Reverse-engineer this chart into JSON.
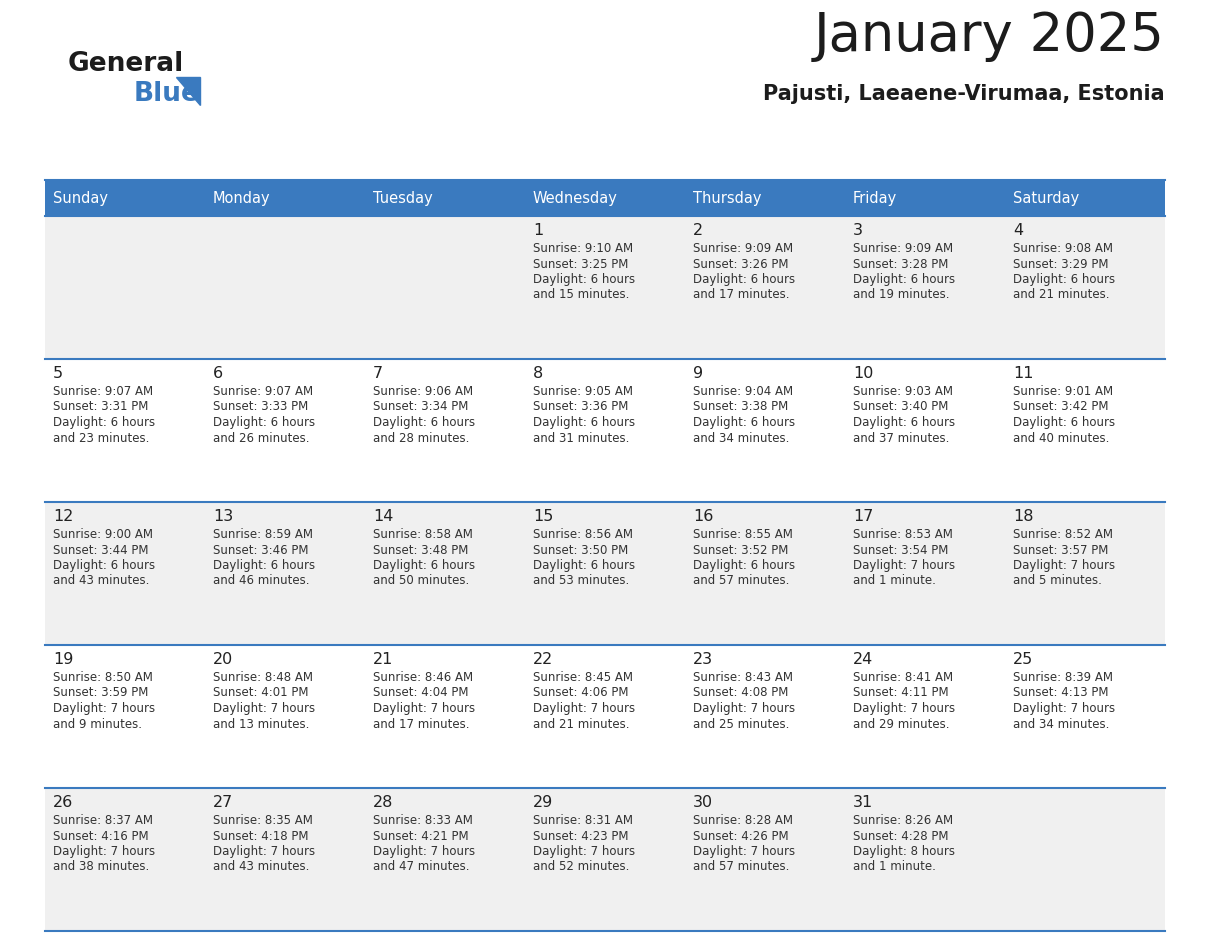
{
  "title": "January 2025",
  "subtitle": "Pajusti, Laeaene-Virumaa, Estonia",
  "days_of_week": [
    "Sunday",
    "Monday",
    "Tuesday",
    "Wednesday",
    "Thursday",
    "Friday",
    "Saturday"
  ],
  "header_bg": "#3a7abf",
  "header_text": "#ffffff",
  "row_bg1": "#f0f0f0",
  "row_bg2": "#ffffff",
  "divider_color": "#3a7abf",
  "cell_text_color": "#333333",
  "day_number_color": "#222222",
  "calendar_data": [
    [
      {
        "day": "",
        "sunrise": "",
        "sunset": "",
        "hours": "",
        "minutes": ""
      },
      {
        "day": "",
        "sunrise": "",
        "sunset": "",
        "hours": "",
        "minutes": ""
      },
      {
        "day": "",
        "sunrise": "",
        "sunset": "",
        "hours": "",
        "minutes": ""
      },
      {
        "day": "1",
        "sunrise": "9:10 AM",
        "sunset": "3:25 PM",
        "hours": "6",
        "minutes": "15"
      },
      {
        "day": "2",
        "sunrise": "9:09 AM",
        "sunset": "3:26 PM",
        "hours": "6",
        "minutes": "17"
      },
      {
        "day": "3",
        "sunrise": "9:09 AM",
        "sunset": "3:28 PM",
        "hours": "6",
        "minutes": "19"
      },
      {
        "day": "4",
        "sunrise": "9:08 AM",
        "sunset": "3:29 PM",
        "hours": "6",
        "minutes": "21"
      }
    ],
    [
      {
        "day": "5",
        "sunrise": "9:07 AM",
        "sunset": "3:31 PM",
        "hours": "6",
        "minutes": "23"
      },
      {
        "day": "6",
        "sunrise": "9:07 AM",
        "sunset": "3:33 PM",
        "hours": "6",
        "minutes": "26"
      },
      {
        "day": "7",
        "sunrise": "9:06 AM",
        "sunset": "3:34 PM",
        "hours": "6",
        "minutes": "28"
      },
      {
        "day": "8",
        "sunrise": "9:05 AM",
        "sunset": "3:36 PM",
        "hours": "6",
        "minutes": "31"
      },
      {
        "day": "9",
        "sunrise": "9:04 AM",
        "sunset": "3:38 PM",
        "hours": "6",
        "minutes": "34"
      },
      {
        "day": "10",
        "sunrise": "9:03 AM",
        "sunset": "3:40 PM",
        "hours": "6",
        "minutes": "37"
      },
      {
        "day": "11",
        "sunrise": "9:01 AM",
        "sunset": "3:42 PM",
        "hours": "6",
        "minutes": "40"
      }
    ],
    [
      {
        "day": "12",
        "sunrise": "9:00 AM",
        "sunset": "3:44 PM",
        "hours": "6",
        "minutes": "43"
      },
      {
        "day": "13",
        "sunrise": "8:59 AM",
        "sunset": "3:46 PM",
        "hours": "6",
        "minutes": "46"
      },
      {
        "day": "14",
        "sunrise": "8:58 AM",
        "sunset": "3:48 PM",
        "hours": "6",
        "minutes": "50"
      },
      {
        "day": "15",
        "sunrise": "8:56 AM",
        "sunset": "3:50 PM",
        "hours": "6",
        "minutes": "53"
      },
      {
        "day": "16",
        "sunrise": "8:55 AM",
        "sunset": "3:52 PM",
        "hours": "6",
        "minutes": "57"
      },
      {
        "day": "17",
        "sunrise": "8:53 AM",
        "sunset": "3:54 PM",
        "hours": "7",
        "minutes": "1"
      },
      {
        "day": "18",
        "sunrise": "8:52 AM",
        "sunset": "3:57 PM",
        "hours": "7",
        "minutes": "5"
      }
    ],
    [
      {
        "day": "19",
        "sunrise": "8:50 AM",
        "sunset": "3:59 PM",
        "hours": "7",
        "minutes": "9"
      },
      {
        "day": "20",
        "sunrise": "8:48 AM",
        "sunset": "4:01 PM",
        "hours": "7",
        "minutes": "13"
      },
      {
        "day": "21",
        "sunrise": "8:46 AM",
        "sunset": "4:04 PM",
        "hours": "7",
        "minutes": "17"
      },
      {
        "day": "22",
        "sunrise": "8:45 AM",
        "sunset": "4:06 PM",
        "hours": "7",
        "minutes": "21"
      },
      {
        "day": "23",
        "sunrise": "8:43 AM",
        "sunset": "4:08 PM",
        "hours": "7",
        "minutes": "25"
      },
      {
        "day": "24",
        "sunrise": "8:41 AM",
        "sunset": "4:11 PM",
        "hours": "7",
        "minutes": "29"
      },
      {
        "day": "25",
        "sunrise": "8:39 AM",
        "sunset": "4:13 PM",
        "hours": "7",
        "minutes": "34"
      }
    ],
    [
      {
        "day": "26",
        "sunrise": "8:37 AM",
        "sunset": "4:16 PM",
        "hours": "7",
        "minutes": "38"
      },
      {
        "day": "27",
        "sunrise": "8:35 AM",
        "sunset": "4:18 PM",
        "hours": "7",
        "minutes": "43"
      },
      {
        "day": "28",
        "sunrise": "8:33 AM",
        "sunset": "4:21 PM",
        "hours": "7",
        "minutes": "47"
      },
      {
        "day": "29",
        "sunrise": "8:31 AM",
        "sunset": "4:23 PM",
        "hours": "7",
        "minutes": "52"
      },
      {
        "day": "30",
        "sunrise": "8:28 AM",
        "sunset": "4:26 PM",
        "hours": "7",
        "minutes": "57"
      },
      {
        "day": "31",
        "sunrise": "8:26 AM",
        "sunset": "4:28 PM",
        "hours": "8",
        "minutes": "1"
      },
      {
        "day": "",
        "sunrise": "",
        "sunset": "",
        "hours": "",
        "minutes": ""
      }
    ]
  ]
}
